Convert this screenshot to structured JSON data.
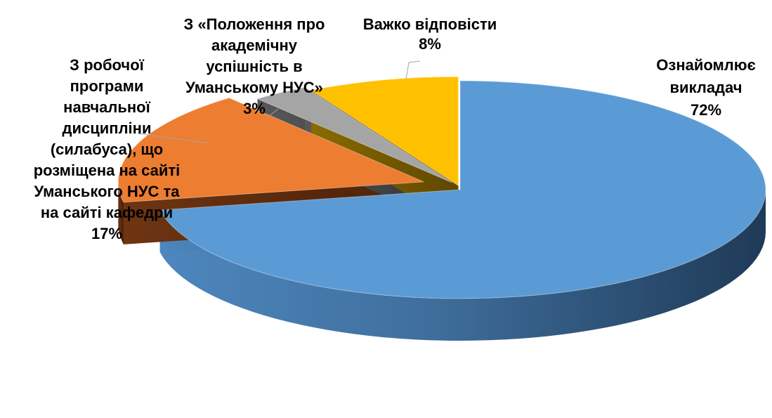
{
  "chart_data": {
    "type": "pie",
    "categories": [
      "Ознайомлює викладач",
      "З робочої програми навчальної дисципліни (силабуса), що розміщена на сайті Уманського НУС та на сайті кафедри",
      "З «Положення про академічну успішність в Уманському НУС»",
      "Важко відповісти"
    ],
    "values": [
      72,
      17,
      3,
      8
    ],
    "percent_labels": [
      "72%",
      "17%",
      "3%",
      "8%"
    ],
    "label_lines": [
      [
        "Ознайомлює",
        "викладач"
      ],
      [
        "З робочої",
        "програми",
        "навчальної",
        "дисципліни",
        "(силабуса), що",
        "розміщена на сайті",
        "Уманського НУС та",
        "на сайті кафедри"
      ],
      [
        "З «Положення про",
        "академічну",
        "успішність в",
        "Уманському НУС»"
      ],
      [
        "Важко відповісти"
      ]
    ],
    "colors": [
      "#5B9BD5",
      "#ED7D31",
      "#A5A5A5",
      "#FFC000"
    ],
    "style": "3d-exploded",
    "legend": "none",
    "title": ""
  }
}
